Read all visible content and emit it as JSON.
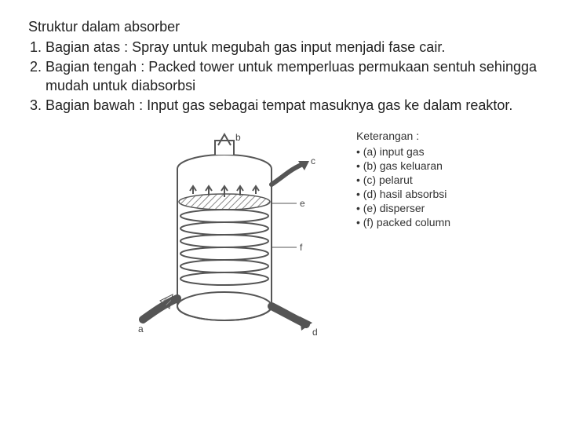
{
  "title": "Struktur dalam absorber",
  "items": [
    "Bagian atas : Spray untuk megubah gas input menjadi fase cair.",
    "Bagian tengah : Packed tower untuk memperluas permukaan sentuh sehingga mudah untuk diabsorbsi",
    "Bagian bawah : Input gas sebagai tempat masuknya gas ke dalam reaktor."
  ],
  "legend_title": "Keterangan :",
  "legend": [
    "(a) input gas",
    "(b) gas keluaran",
    "(c) pelarut",
    "(d) hasil absorbsi",
    "(e) disperser",
    "(f) packed column"
  ],
  "diagram": {
    "labels": {
      "a": "a",
      "b": "b",
      "c": "c",
      "d": "d",
      "e": "e",
      "f": "f"
    },
    "stroke": "#555555",
    "fill": "#ffffff",
    "hatch": "#8a8a8a",
    "plate_count": 6
  }
}
